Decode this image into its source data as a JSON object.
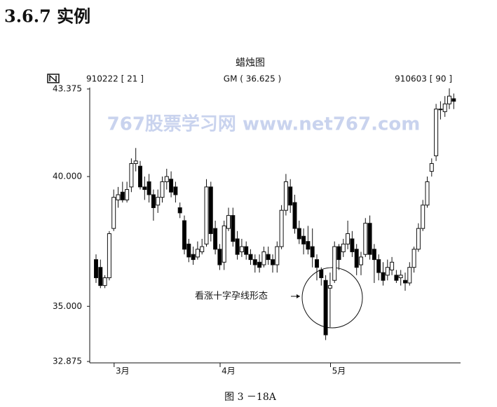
{
  "heading": "3.6.7 实例",
  "caption": "图 3 －18A",
  "chart_data": {
    "type": "candlestick",
    "title": "蜡烛图",
    "header_left": "910222 [ 21 ]",
    "header_center": "GM ( 36.625 )",
    "header_right": "910603 [ 90 ]",
    "watermark": "767股票学习网 www.net767.com",
    "annotation": "看涨十字孕线形态",
    "up_color": "#ffffff",
    "down_color": "#000000",
    "ylim": [
      32.875,
      43.375
    ],
    "yticks": [
      32.875,
      {
        "value": 35,
        "label": "35.000"
      },
      {
        "value": 40,
        "label": "40.000"
      },
      43.375
    ],
    "categories": [
      null,
      null,
      null,
      null,
      null,
      null,
      "3月",
      null,
      null,
      null,
      null,
      null,
      null,
      null,
      null,
      null,
      null,
      null,
      null,
      null,
      null,
      null,
      null,
      null,
      null,
      null,
      null,
      null,
      null,
      null,
      "4月",
      null,
      null,
      null,
      null,
      null,
      null,
      null,
      null,
      null,
      null,
      null,
      null,
      null,
      null,
      null,
      null,
      null,
      null,
      null,
      null,
      null,
      null,
      null,
      null,
      "5月",
      null,
      null,
      null,
      null,
      null,
      null,
      null,
      null,
      null,
      null,
      null,
      null,
      null,
      null,
      null,
      null,
      null,
      null,
      null,
      null,
      null,
      null,
      null,
      null,
      null,
      null
    ],
    "open": [
      36.8,
      36.5,
      35.8,
      36.1,
      38.0,
      39.1,
      39.4,
      39.1,
      39.6,
      40.5,
      40.4,
      39.6,
      39.8,
      39.3,
      38.9,
      39.2,
      39.8,
      39.9,
      39.6,
      38.8,
      38.3,
      37.4,
      37.0,
      36.9,
      37.1,
      37.4,
      39.6,
      38.0,
      37.2,
      36.7,
      38.0,
      38.5,
      37.6,
      37.1,
      37.3,
      37.0,
      36.8,
      36.7,
      36.6,
      37.0,
      36.8,
      36.6,
      37.3,
      38.7,
      39.6,
      39.0,
      38.0,
      37.7,
      37.5,
      37.3,
      36.8,
      36.4,
      36.0,
      35.7,
      36.0,
      37.3,
      37.1,
      37.4,
      37.6,
      37.2,
      36.6,
      37.0,
      38.2,
      37.2,
      36.8,
      36.3,
      36.2,
      36.4,
      36.2,
      36.1,
      36.0,
      35.9,
      36.5,
      37.2,
      38.0,
      38.9,
      40.2,
      40.8,
      42.6,
      42.5,
      42.8,
      43.0
    ],
    "high": [
      37.0,
      36.8,
      36.2,
      37.9,
      39.5,
      39.6,
      39.8,
      39.8,
      40.7,
      41.1,
      40.6,
      40.0,
      40.1,
      39.5,
      39.5,
      40.0,
      40.3,
      40.2,
      39.8,
      39.0,
      38.5,
      37.6,
      37.3,
      37.5,
      37.6,
      39.9,
      39.8,
      38.3,
      37.4,
      38.3,
      38.8,
      38.8,
      37.9,
      37.6,
      37.5,
      37.2,
      37.0,
      37.0,
      37.3,
      37.3,
      37.0,
      37.5,
      38.9,
      40.1,
      39.9,
      39.3,
      38.3,
      38.0,
      38.1,
      38.0,
      37.0,
      36.5,
      36.2,
      36.3,
      37.5,
      37.4,
      37.6,
      38.3,
      37.9,
      37.4,
      37.1,
      38.4,
      38.5,
      37.4,
      37.0,
      36.7,
      36.8,
      36.9,
      36.4,
      36.4,
      36.3,
      36.7,
      37.3,
      38.2,
      39.1,
      40.0,
      40.7,
      42.8,
      42.9,
      43.1,
      43.4,
      43.2
    ],
    "low": [
      35.9,
      35.7,
      35.7,
      36.0,
      37.9,
      38.8,
      39.0,
      39.0,
      39.4,
      40.2,
      39.5,
      39.1,
      39.0,
      38.3,
      38.6,
      39.0,
      39.5,
      39.2,
      39.0,
      38.4,
      37.0,
      36.7,
      36.6,
      36.8,
      37.0,
      37.3,
      37.5,
      37.0,
      36.4,
      36.4,
      37.9,
      37.3,
      36.8,
      36.9,
      36.8,
      36.6,
      36.3,
      36.3,
      36.5,
      36.6,
      36.3,
      36.3,
      37.2,
      38.5,
      38.6,
      37.8,
      37.4,
      37.0,
      37.0,
      36.5,
      36.0,
      35.8,
      33.7,
      34.2,
      35.9,
      36.4,
      36.9,
      37.2,
      36.9,
      36.2,
      36.2,
      36.9,
      36.8,
      35.9,
      36.0,
      35.8,
      36.0,
      36.2,
      35.9,
      35.8,
      35.6,
      35.8,
      36.3,
      37.1,
      37.9,
      38.8,
      40.0,
      40.6,
      42.2,
      42.3,
      42.6,
      42.6
    ],
    "close": [
      36.1,
      35.8,
      36.1,
      37.8,
      39.2,
      39.3,
      39.1,
      39.5,
      40.5,
      40.6,
      39.6,
      39.5,
      39.3,
      38.8,
      39.2,
      39.8,
      40.0,
      39.4,
      39.3,
      38.6,
      37.2,
      36.9,
      36.8,
      37.2,
      37.3,
      39.6,
      37.8,
      37.2,
      36.6,
      38.1,
      38.5,
      37.5,
      37.0,
      37.3,
      37.0,
      36.8,
      36.6,
      36.5,
      37.1,
      36.8,
      36.6,
      37.3,
      38.7,
      39.8,
      38.9,
      38.0,
      37.6,
      37.4,
      37.2,
      36.9,
      36.5,
      36.1,
      33.9,
      35.8,
      37.3,
      36.8,
      37.4,
      37.8,
      37.1,
      36.5,
      36.9,
      38.2,
      37.0,
      36.8,
      36.3,
      36.0,
      36.5,
      36.7,
      36.0,
      36.2,
      35.9,
      36.5,
      37.2,
      38.0,
      38.9,
      39.8,
      40.5,
      42.6,
      42.6,
      42.8,
      43.1,
      42.9
    ]
  }
}
